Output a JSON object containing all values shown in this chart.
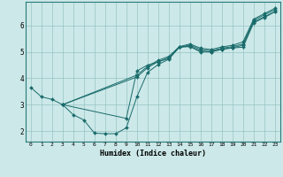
{
  "xlabel": "Humidex (Indice chaleur)",
  "bg_color": "#cce8e8",
  "line_color": "#1a6b6b",
  "xlim": [
    -0.5,
    23.5
  ],
  "ylim": [
    1.6,
    6.9
  ],
  "yticks": [
    2,
    3,
    4,
    5,
    6
  ],
  "xticks": [
    0,
    1,
    2,
    3,
    4,
    5,
    6,
    7,
    8,
    9,
    10,
    11,
    12,
    13,
    14,
    15,
    16,
    17,
    18,
    19,
    20,
    21,
    22,
    23
  ],
  "line1_x": [
    0,
    1,
    2,
    3,
    4,
    5,
    6,
    7,
    8,
    9,
    10,
    11,
    12,
    13,
    14,
    15,
    16,
    17,
    18,
    19,
    20,
    21,
    22,
    23
  ],
  "line1_y": [
    3.65,
    3.3,
    3.2,
    3.0,
    2.62,
    2.42,
    1.92,
    1.9,
    1.9,
    2.12,
    3.3,
    4.22,
    4.52,
    4.72,
    5.18,
    5.2,
    5.0,
    5.0,
    5.1,
    5.15,
    5.18,
    6.1,
    6.3,
    6.52
  ],
  "line2_x": [
    3,
    9,
    10,
    11,
    12,
    13,
    14,
    15,
    16,
    17,
    18,
    19,
    20,
    21,
    22,
    23
  ],
  "line2_y": [
    3.0,
    2.48,
    4.28,
    4.5,
    4.62,
    4.75,
    5.18,
    5.22,
    5.03,
    5.0,
    5.1,
    5.16,
    5.25,
    6.13,
    6.33,
    6.53
  ],
  "line3_x": [
    3,
    10,
    11,
    12,
    13,
    14,
    15,
    16,
    17,
    18,
    19,
    20,
    21,
    22,
    23
  ],
  "line3_y": [
    3.0,
    4.05,
    4.4,
    4.63,
    4.78,
    5.18,
    5.26,
    5.09,
    5.04,
    5.14,
    5.2,
    5.3,
    6.19,
    6.4,
    6.6
  ],
  "line4_x": [
    3,
    10,
    11,
    12,
    13,
    14,
    15,
    16,
    17,
    18,
    19,
    20,
    21,
    22,
    23
  ],
  "line4_y": [
    3.0,
    4.12,
    4.45,
    4.68,
    4.83,
    5.2,
    5.3,
    5.14,
    5.09,
    5.19,
    5.25,
    5.38,
    6.24,
    6.45,
    6.65
  ]
}
